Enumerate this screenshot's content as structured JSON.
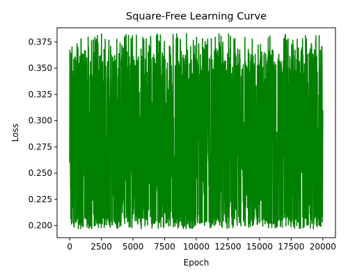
{
  "chart_data": {
    "type": "line",
    "title": "Square-Free Learning Curve",
    "xlabel": "Epoch",
    "ylabel": "Loss",
    "xlim": [
      -1000,
      21000
    ],
    "ylim": [
      0.1885,
      0.3885
    ],
    "x_ticks": [
      0,
      2500,
      5000,
      7500,
      10000,
      12500,
      15000,
      17500,
      20000
    ],
    "x_tick_labels": [
      "0",
      "2500",
      "5000",
      "7500",
      "10000",
      "12500",
      "15000",
      "17500",
      "20000"
    ],
    "y_ticks": [
      0.2,
      0.225,
      0.25,
      0.275,
      0.3,
      0.325,
      0.35,
      0.375
    ],
    "y_tick_labels": [
      "0.200",
      "0.225",
      "0.250",
      "0.275",
      "0.300",
      "0.325",
      "0.350",
      "0.375"
    ],
    "grid": false,
    "colors": {
      "line": "#008000",
      "axes": "#000000",
      "background": "#ffffff"
    },
    "series": [
      {
        "x_range": [
          0,
          20000
        ],
        "y_min": 0.197,
        "y_max": 0.383,
        "x_sample": [
          0,
          1000,
          2000,
          3000,
          4000,
          5000,
          6000,
          7000,
          8000,
          9000,
          10000,
          11000,
          12000,
          13000,
          14000,
          15000,
          16000,
          17000,
          18000,
          19000,
          20000
        ],
        "y_sample": [
          0.36,
          0.21,
          0.38,
          0.2,
          0.37,
          0.22,
          0.38,
          0.21,
          0.35,
          0.2,
          0.37,
          0.21,
          0.38,
          0.2,
          0.38,
          0.21,
          0.37,
          0.2,
          0.36,
          0.21,
          0.35
        ]
      }
    ]
  }
}
